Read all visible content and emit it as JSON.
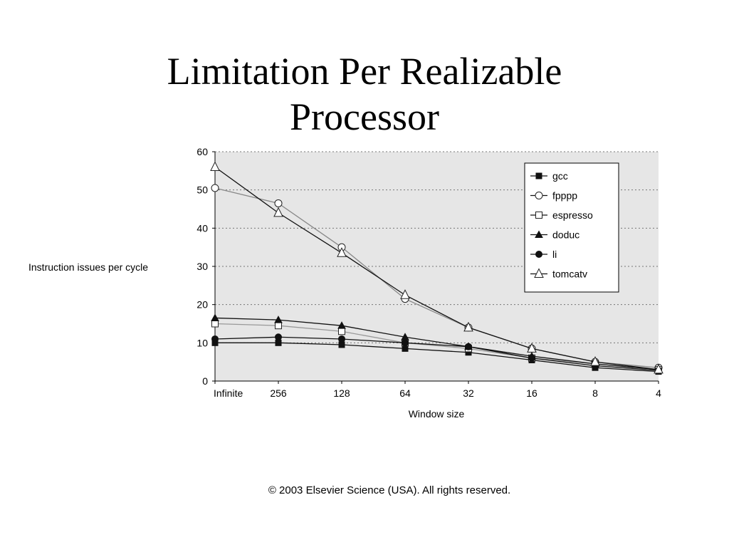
{
  "slide": {
    "title_line1": "Limitation Per Realizable",
    "title_line2": "Processor",
    "copyright": "© 2003 Elsevier Science (USA). All rights reserved."
  },
  "chart_data": {
    "type": "line",
    "title": "",
    "xlabel": "Window size",
    "ylabel": "Instruction issues per cycle",
    "categories": [
      "Infinite",
      "256",
      "128",
      "64",
      "32",
      "16",
      "8",
      "4"
    ],
    "ylim": [
      0,
      60
    ],
    "yticks": [
      0,
      10,
      20,
      30,
      40,
      50,
      60
    ],
    "grid": "horizontal dotted",
    "legend_position": "top-right",
    "background": "#e6e6e6",
    "series": [
      {
        "name": "gcc",
        "marker": "filled-square",
        "color": "#111111",
        "values": [
          10,
          10,
          9.5,
          8.5,
          7.5,
          5.5,
          3.5,
          2.5
        ]
      },
      {
        "name": "fpppp",
        "marker": "open-circle",
        "color": "#888888",
        "values": [
          50.5,
          46.5,
          35,
          21.5,
          14,
          8.5,
          5,
          3.5
        ]
      },
      {
        "name": "espresso",
        "marker": "open-square",
        "color": "#999999",
        "values": [
          15,
          14.5,
          13,
          10,
          8.5,
          6,
          4.5,
          3
        ]
      },
      {
        "name": "doduc",
        "marker": "filled-triangle",
        "color": "#111111",
        "values": [
          16.5,
          16,
          14.5,
          11.5,
          9,
          6.5,
          4.5,
          3
        ]
      },
      {
        "name": "li",
        "marker": "filled-circle",
        "color": "#111111",
        "values": [
          11,
          11.5,
          11,
          10,
          9,
          6,
          4,
          2.8
        ]
      },
      {
        "name": "tomcatv",
        "marker": "open-triangle",
        "color": "#111111",
        "values": [
          56,
          44,
          33.5,
          22.5,
          14,
          8.5,
          5,
          3
        ]
      }
    ]
  }
}
